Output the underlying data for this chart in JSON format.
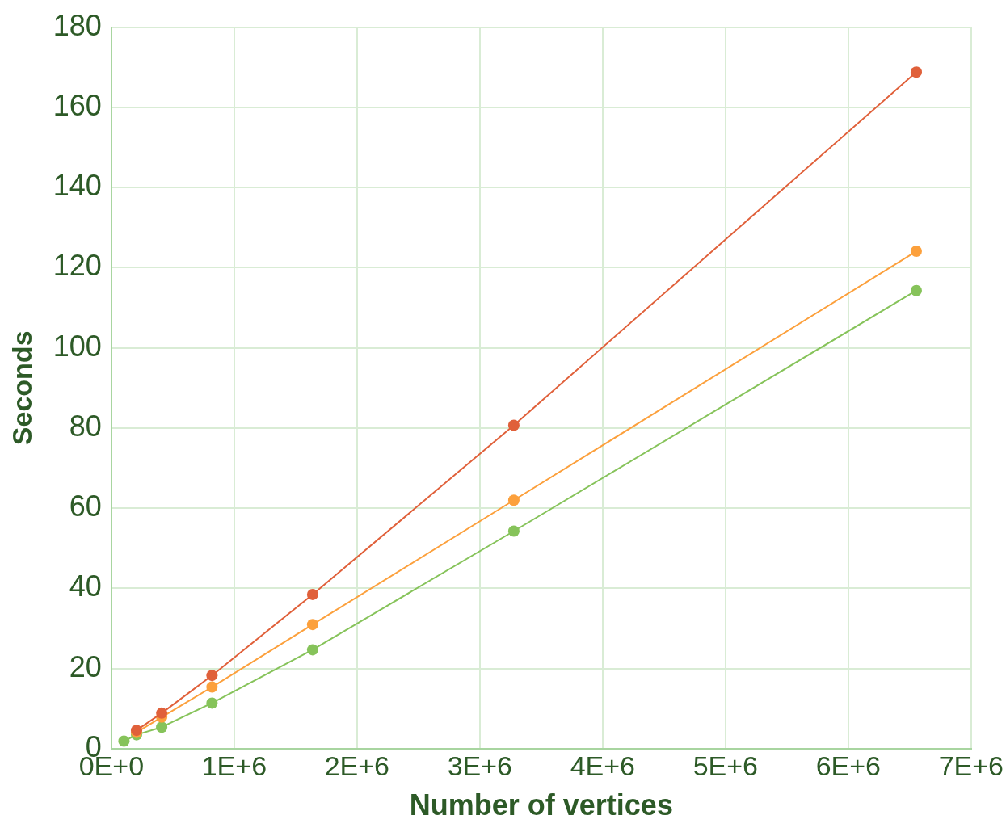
{
  "chart_data": {
    "type": "line",
    "xlabel": "Number of vertices",
    "ylabel": "Seconds",
    "x": [
      102400,
      204800,
      409600,
      819200,
      1638400,
      3276800,
      6553600
    ],
    "series": [
      {
        "color": "#e0603a",
        "values": [
          null,
          4.6,
          8.9,
          18.3,
          38.5,
          80.7,
          168.8
        ]
      },
      {
        "color": "#fca03c",
        "values": [
          null,
          4.1,
          7.9,
          15.4,
          31.0,
          62.0,
          124.1
        ]
      },
      {
        "color": "#86c35a",
        "values": [
          1.9,
          3.5,
          5.4,
          11.4,
          24.7,
          54.3,
          114.3
        ]
      }
    ],
    "xlim": [
      0,
      7000000
    ],
    "xticks": [
      {
        "value": 0,
        "label": "0E+0"
      },
      {
        "value": 1000000,
        "label": "1E+6"
      },
      {
        "value": 2000000,
        "label": "2E+6"
      },
      {
        "value": 3000000,
        "label": "3E+6"
      },
      {
        "value": 4000000,
        "label": "4E+6"
      },
      {
        "value": 5000000,
        "label": "5E+6"
      },
      {
        "value": 6000000,
        "label": "6E+6"
      },
      {
        "value": 7000000,
        "label": "7E+6"
      }
    ],
    "ylim": [
      0,
      180
    ],
    "yticks": [
      0,
      20,
      40,
      60,
      80,
      100,
      120,
      140,
      160,
      180
    ],
    "grid": true,
    "legend": false,
    "marker": "circle",
    "line_style": "solid"
  }
}
